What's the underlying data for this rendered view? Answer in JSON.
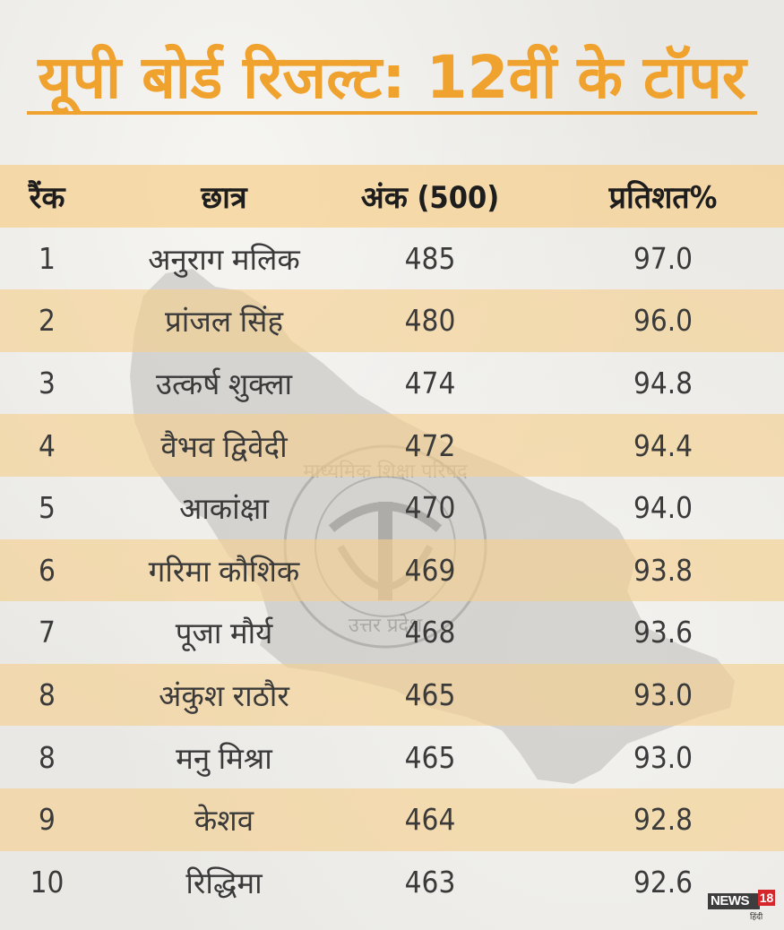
{
  "title": "यूपी बोर्ड रिजल्ट: 12वीं के टॉपर",
  "table": {
    "headers": {
      "rank": "रैंक",
      "name": "छात्र",
      "marks": "अंक (500)",
      "percent": "प्रतिशत%"
    },
    "rows": [
      {
        "rank": "1",
        "name": "अनुराग मलिक",
        "marks": "485",
        "percent": "97.0"
      },
      {
        "rank": "2",
        "name": "प्रांजल सिंह",
        "marks": "480",
        "percent": "96.0"
      },
      {
        "rank": "3",
        "name": "उत्कर्ष शुक्ला",
        "marks": "474",
        "percent": "94.8"
      },
      {
        "rank": "4",
        "name": "वैभव द्विवेदी",
        "marks": "472",
        "percent": "94.4"
      },
      {
        "rank": "5",
        "name": "आकांक्षा",
        "marks": "470",
        "percent": "94.0"
      },
      {
        "rank": "6",
        "name": "गरिमा कौशिक",
        "marks": "469",
        "percent": "93.8"
      },
      {
        "rank": "7",
        "name": "पूजा मौर्य",
        "marks": "468",
        "percent": "93.6"
      },
      {
        "rank": "8",
        "name": "अंकुश राठौर",
        "marks": "465",
        "percent": "93.0"
      },
      {
        "rank": "8",
        "name": "मनु मिश्रा",
        "marks": "465",
        "percent": "93.0"
      },
      {
        "rank": "9",
        "name": "केशव",
        "marks": "464",
        "percent": "92.8"
      },
      {
        "rank": "10",
        "name": "रिद्धिमा",
        "marks": "463",
        "percent": "92.6"
      }
    ]
  },
  "watermark": {
    "seal_text_top": "माध्यमिक शिक्षा परिषद",
    "seal_text_bottom": "उत्तर प्रदेश",
    "map_icon": "uttar-pradesh-map"
  },
  "logo": {
    "brand": "NEWS",
    "number": "18",
    "sub": "हिंदी"
  },
  "colors": {
    "accent": "#f0a22e",
    "stripe": "#f6ce8c"
  }
}
